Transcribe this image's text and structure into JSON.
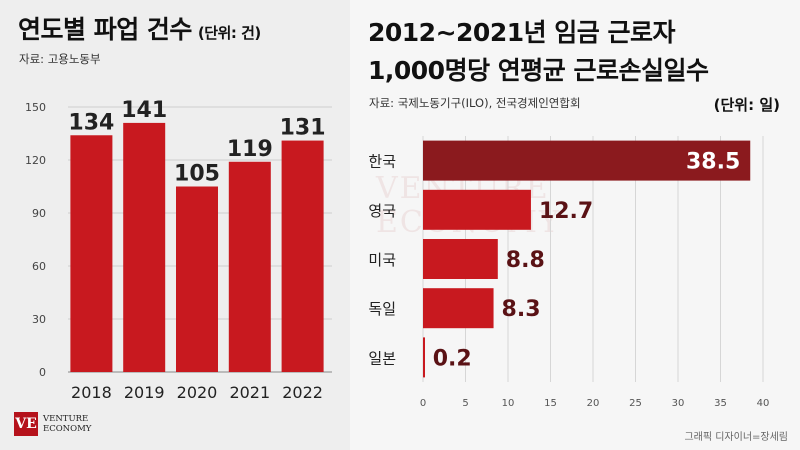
{
  "left": {
    "title": "연도별 파업 건수",
    "unit": "(단위: 건)",
    "source": "자료: 고용노동부",
    "chart_data": {
      "type": "bar",
      "categories": [
        "2018",
        "2019",
        "2020",
        "2021",
        "2022"
      ],
      "values": [
        134,
        141,
        105,
        119,
        131
      ],
      "ylim": [
        0,
        150
      ],
      "yticks": [
        "0",
        "30",
        "60",
        "90",
        "120",
        "150"
      ],
      "bar_color": "#c8191f",
      "grid": true
    }
  },
  "right": {
    "title_line1": "2012~2021년 임금 근로자",
    "title_line2": "1,000명당 연평균 근로손실일수",
    "unit": "(단위: 일)",
    "source": "자료: 국제노동기구(ILO), 전국경제인연합회",
    "chart_data": {
      "type": "bar",
      "orientation": "horizontal",
      "categories": [
        "한국",
        "영국",
        "미국",
        "독일",
        "일본"
      ],
      "values": [
        38.5,
        12.7,
        8.8,
        8.3,
        0.2
      ],
      "value_labels": [
        "38.5",
        "12.7",
        "8.8",
        "8.3",
        "0.2"
      ],
      "xlim": [
        0,
        40
      ],
      "xticks": [
        "0",
        "5",
        "10",
        "15",
        "20",
        "25",
        "30",
        "35",
        "40"
      ],
      "highlight_color": "#8b1a1e",
      "bar_color": "#c8191f",
      "grid": true
    }
  },
  "logo": {
    "line1": "VENTURE",
    "line2": "ECONOMY",
    "mark": "VE"
  },
  "credit": "그래픽 디자이너=장세림",
  "colors": {
    "bar": "#c8191f",
    "highlight": "#8b1a1e",
    "value_dark": "#5a1215"
  }
}
